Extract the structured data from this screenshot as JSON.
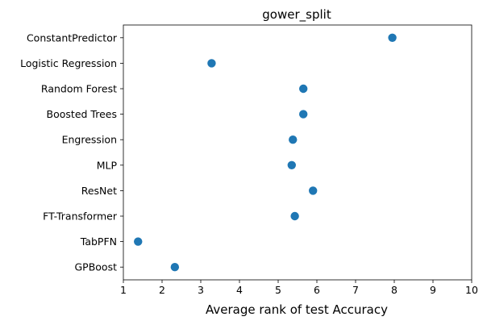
{
  "chart_data": {
    "type": "scatter",
    "title": "gower_split",
    "xlabel": "Average rank of test Accuracy",
    "ylabel": "",
    "xlim": [
      1,
      10
    ],
    "xticks": [
      "1",
      "2",
      "3",
      "4",
      "5",
      "6",
      "7",
      "8",
      "9",
      "10"
    ],
    "grid": false,
    "marker_color": "#1f77b4",
    "categories": [
      "ConstantPredictor",
      "Logistic Regression",
      "Random Forest",
      "Boosted Trees",
      "Engression",
      "MLP",
      "ResNet",
      "FT-Transformer",
      "TabPFN",
      "GPBoost"
    ],
    "values": [
      7.95,
      3.28,
      5.65,
      5.65,
      5.38,
      5.35,
      5.9,
      5.43,
      1.38,
      2.33
    ]
  }
}
